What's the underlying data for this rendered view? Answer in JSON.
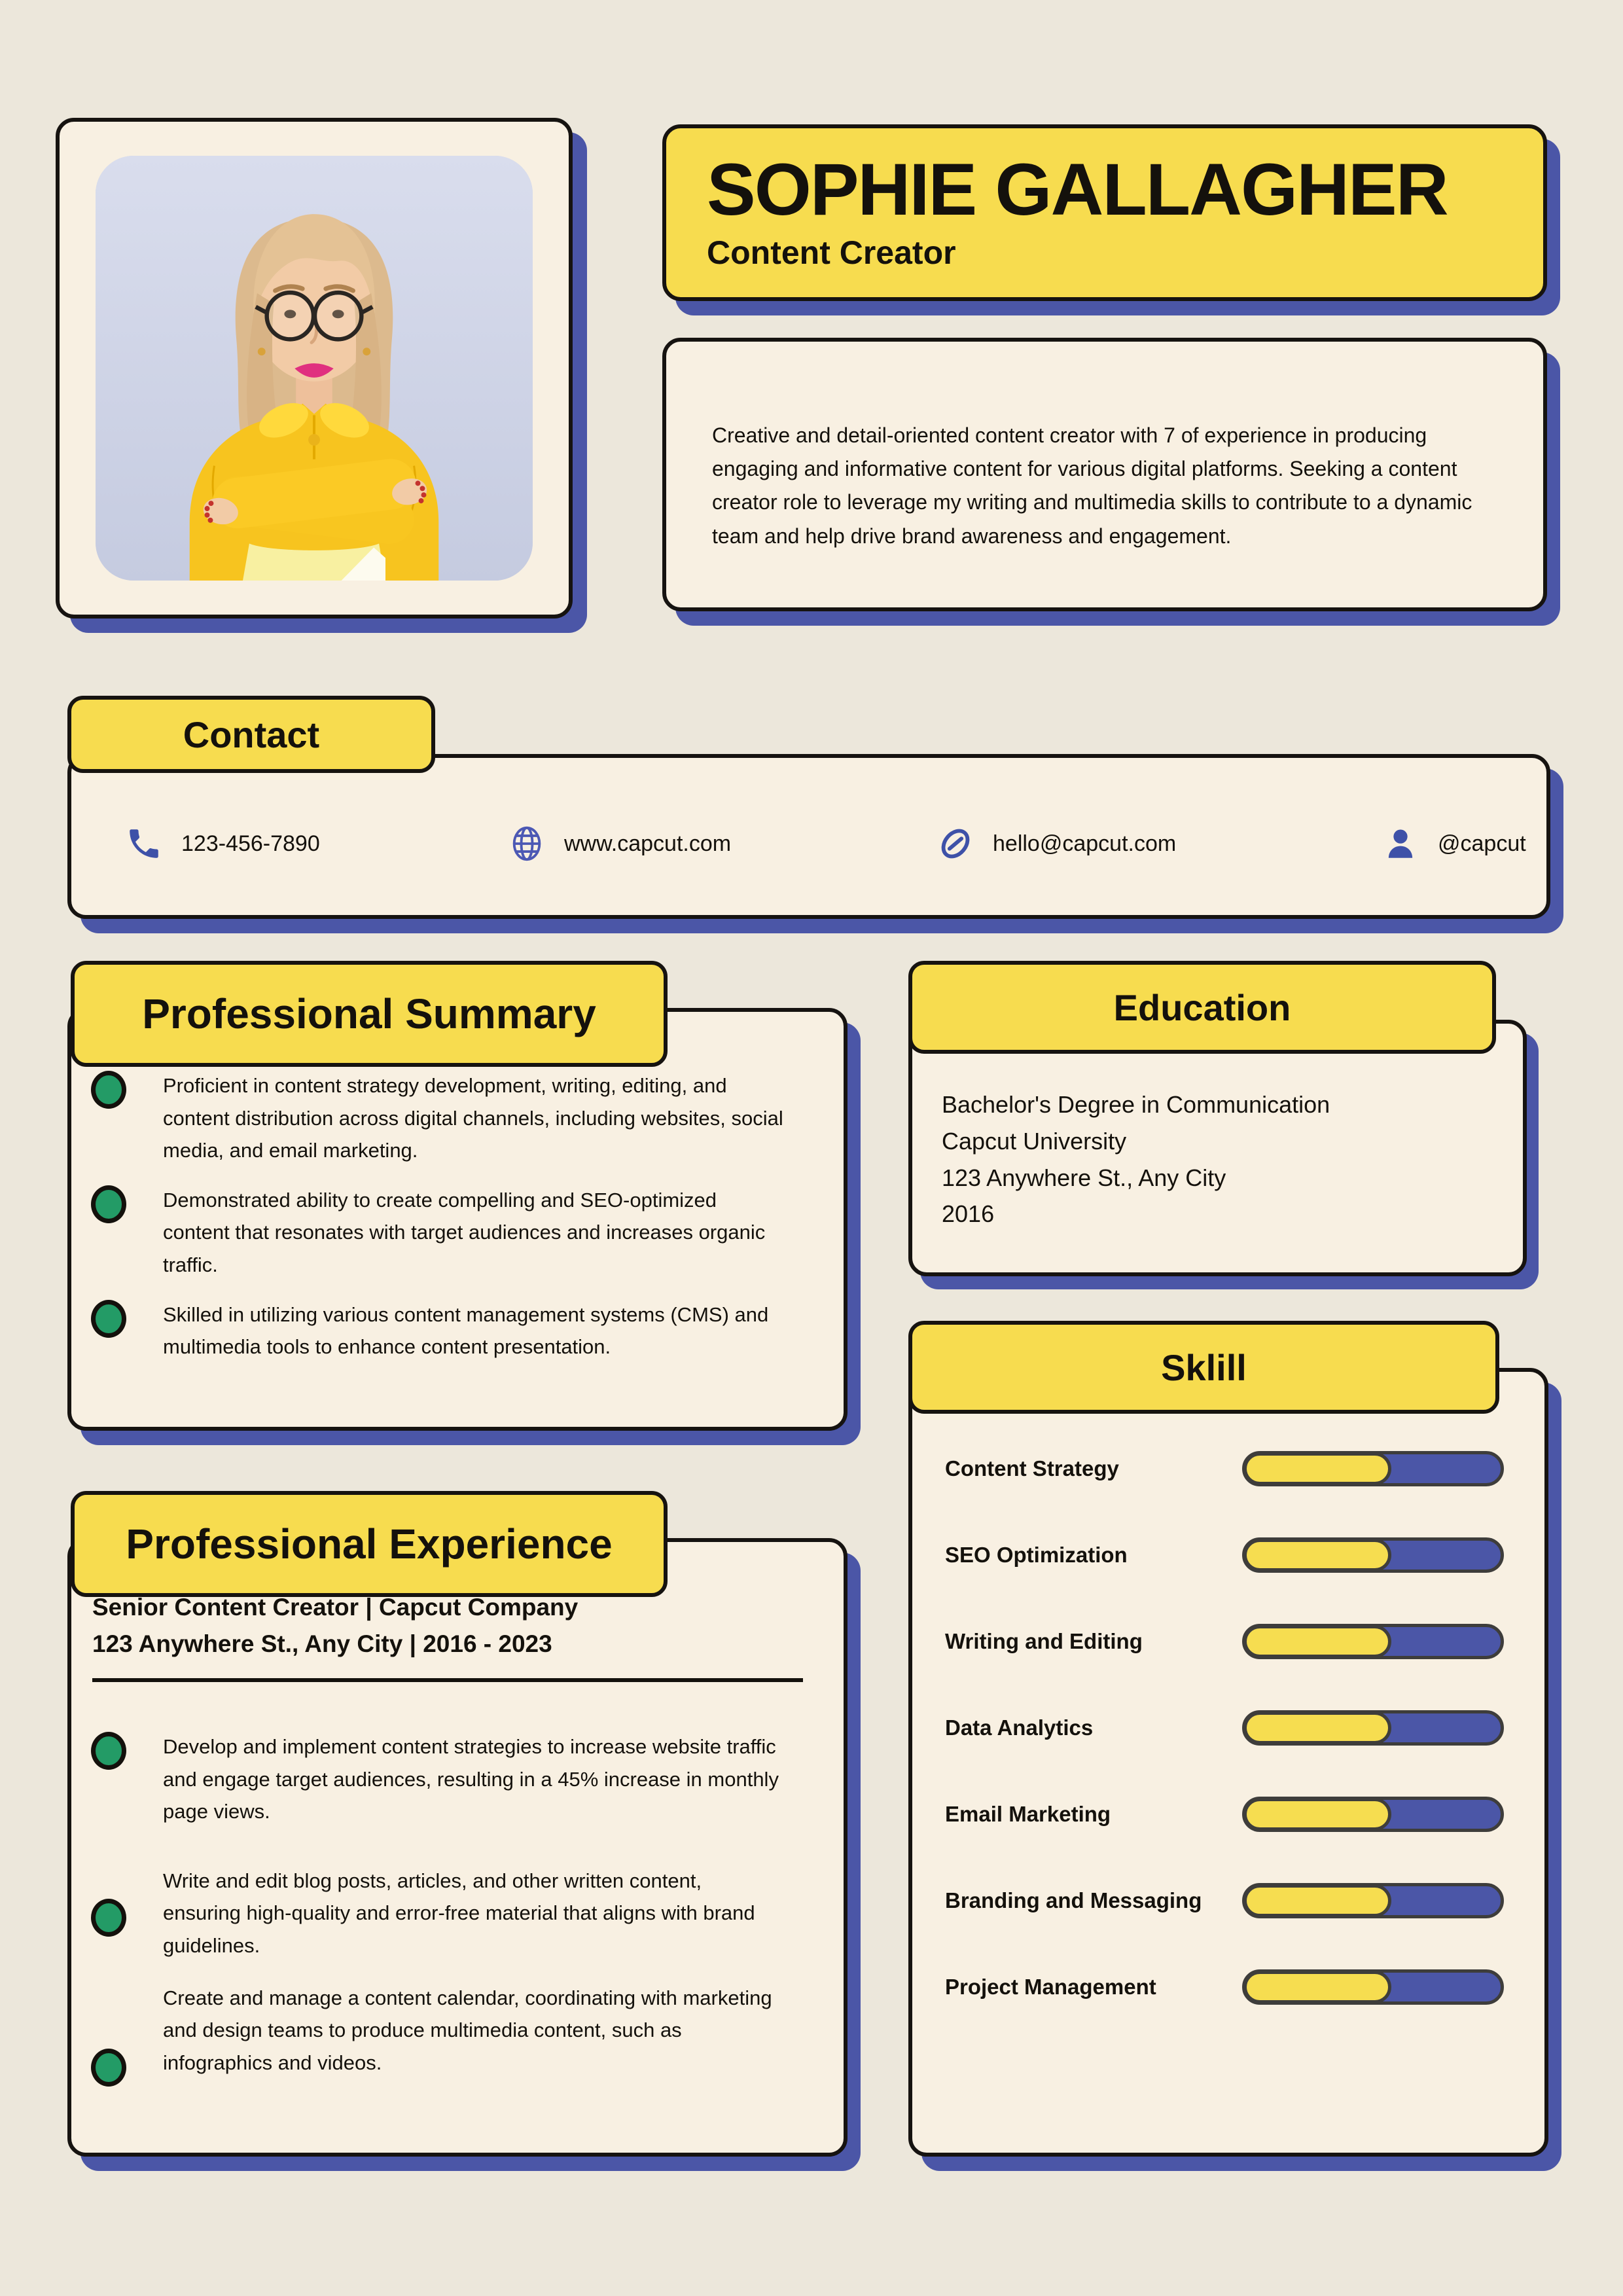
{
  "header": {
    "name": "SOPHIE GALLAGHER",
    "title": "Content Creator"
  },
  "profile": {
    "summary": "Creative and detail-oriented content creator with 7 of experience in producing engaging and informative content for various digital platforms. Seeking a content creator role to leverage my writing and multimedia skills to contribute to a dynamic team and help drive brand awareness and engagement."
  },
  "contact": {
    "heading": "Contact",
    "items": [
      {
        "icon": "phone-icon",
        "label": "123-456-7890"
      },
      {
        "icon": "globe-icon",
        "label": "www.capcut.com"
      },
      {
        "icon": "link-icon",
        "label": "hello@capcut.com"
      },
      {
        "icon": "person-icon",
        "label": "@capcut"
      }
    ]
  },
  "professional_summary": {
    "heading": "Professional Summary",
    "bullets": [
      "Proficient in content strategy development, writing, editing, and content distribution across digital channels, including websites, social media, and email marketing.",
      "Demonstrated ability to create compelling and SEO-optimized content that resonates with target audiences and increases organic traffic.",
      "Skilled in utilizing various content management systems (CMS) and multimedia tools to enhance content presentation."
    ]
  },
  "education": {
    "heading": "Education",
    "lines": [
      "Bachelor's Degree in Communication",
      "Capcut University",
      "123 Anywhere St., Any City",
      "2016"
    ]
  },
  "skills": {
    "heading": "Sklill",
    "items": [
      {
        "label": "Content Strategy",
        "percent": 58
      },
      {
        "label": "SEO Optimization",
        "percent": 58
      },
      {
        "label": "Writing and Editing",
        "percent": 58
      },
      {
        "label": "Data Analytics",
        "percent": 58
      },
      {
        "label": "Email Marketing",
        "percent": 58
      },
      {
        "label": "Branding and Messaging",
        "percent": 58
      },
      {
        "label": "Project Management",
        "percent": 58
      }
    ]
  },
  "experience": {
    "heading": "Professional Experience",
    "role_line": "Senior Content Creator | Capcut Company",
    "location_line": "123 Anywhere St., Any City | 2016 - 2023",
    "bullets": [
      "Develop and implement content strategies to increase website traffic and engage target audiences, resulting in a 45% increase in monthly page views.",
      "Write and edit blog posts, articles, and other written content, ensuring high-quality and error-free material that aligns with brand guidelines.",
      "Create and manage a content calendar, coordinating with marketing and design teams to produce multimedia content, such as infographics and videos."
    ]
  },
  "colors": {
    "background": "#ece7db",
    "card_cream": "#f8f0e2",
    "accent_yellow": "#f7dc4f",
    "accent_blue": "#4b56a7",
    "bullet_green": "#239b66",
    "icon_blue": "#3e51a8",
    "ink": "#14110c"
  }
}
